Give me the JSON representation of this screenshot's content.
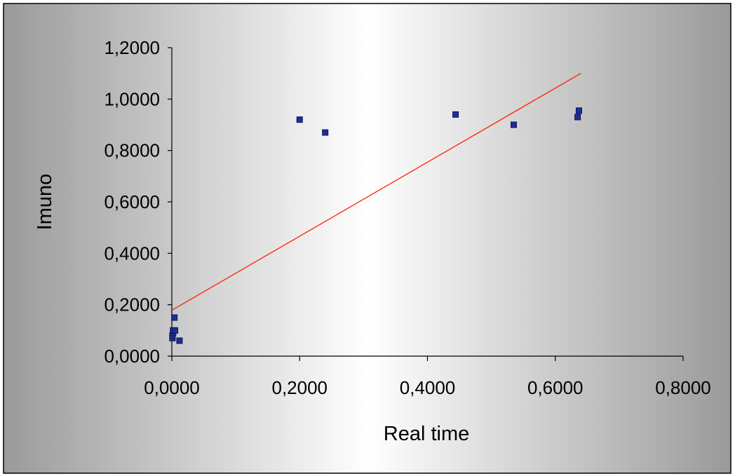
{
  "chart_data": {
    "type": "scatter",
    "title": "",
    "xlabel": "Real time",
    "ylabel": "Imuno",
    "xlim": [
      0,
      0.8
    ],
    "ylim": [
      0,
      1.2
    ],
    "x_ticks": [
      "0,0000",
      "0,2000",
      "0,4000",
      "0,6000",
      "0,8000"
    ],
    "y_ticks": [
      "0,0000",
      "0,2000",
      "0,4000",
      "0,6000",
      "0,8000",
      "1,0000",
      "1,2000"
    ],
    "x_tick_values": [
      0,
      0.2,
      0.4,
      0.6,
      0.8
    ],
    "y_tick_values": [
      0,
      0.2,
      0.4,
      0.6,
      0.8,
      1.0,
      1.2
    ],
    "grid": false,
    "legend": "none",
    "series": [
      {
        "points": [
          {
            "x": 0.001,
            "y": 0.07
          },
          {
            "x": 0.001,
            "y": 0.08
          },
          {
            "x": 0.002,
            "y": 0.09
          },
          {
            "x": 0.002,
            "y": 0.1
          },
          {
            "x": 0.004,
            "y": 0.15
          },
          {
            "x": 0.005,
            "y": 0.1
          },
          {
            "x": 0.012,
            "y": 0.06
          },
          {
            "x": 0.2,
            "y": 0.92
          },
          {
            "x": 0.24,
            "y": 0.87
          },
          {
            "x": 0.444,
            "y": 0.94
          },
          {
            "x": 0.535,
            "y": 0.9
          },
          {
            "x": 0.635,
            "y": 0.93
          },
          {
            "x": 0.637,
            "y": 0.955
          }
        ],
        "color": "#1f2f8f"
      }
    ],
    "trendline": {
      "x": [
        0.001,
        0.64
      ],
      "y": [
        0.18,
        1.1
      ],
      "color": "#ff2200"
    }
  }
}
